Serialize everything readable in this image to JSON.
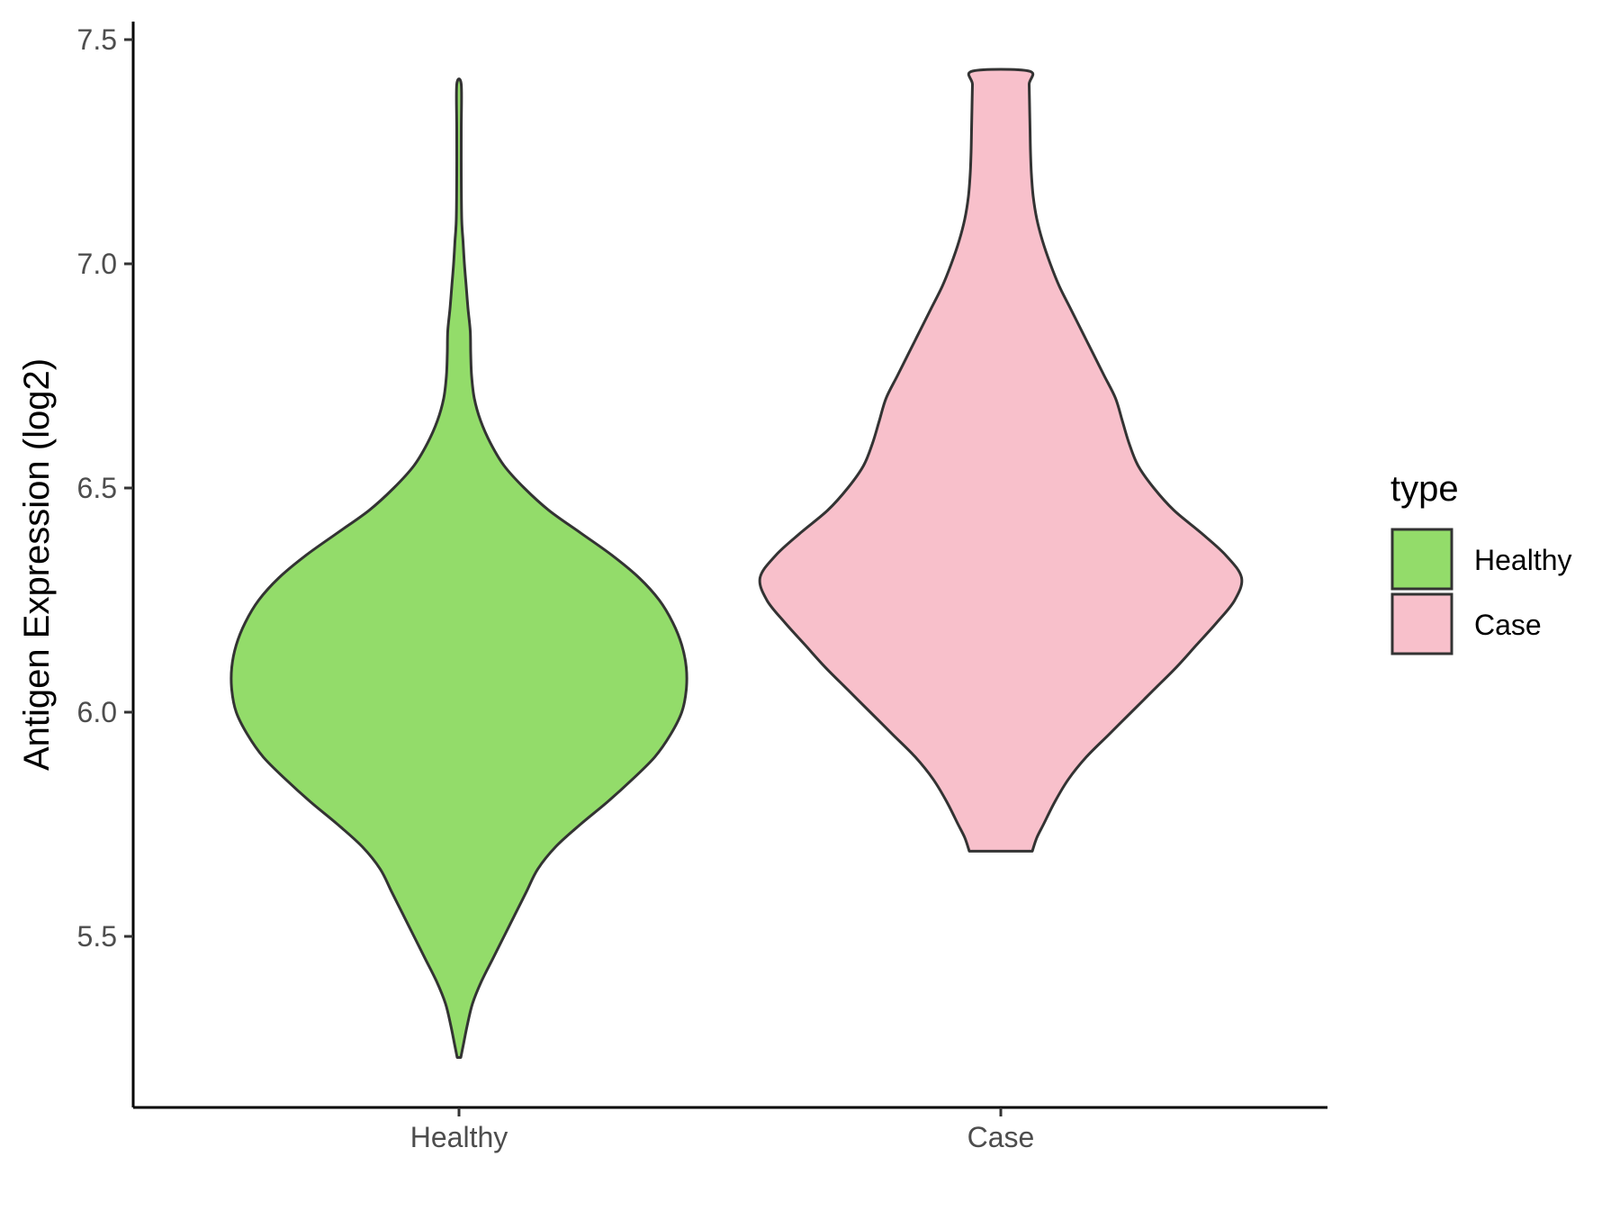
{
  "chart_data": {
    "type": "violin",
    "title": "",
    "xlabel": "",
    "ylabel": "Antigen Expression (log2)",
    "ylim": [
      5.1,
      7.55
    ],
    "yticks": [
      "5.5",
      "6.0",
      "6.5",
      "7.0",
      "7.5"
    ],
    "categories": [
      "Healthy",
      "Case"
    ],
    "legend": {
      "title": "type",
      "placement": "right",
      "entries": [
        {
          "label": "Healthy",
          "color": "#93dc6a"
        },
        {
          "label": "Case",
          "color": "#f8c0cb"
        }
      ]
    },
    "grid": false,
    "outline_color": "#333333",
    "series": [
      {
        "category": "Healthy",
        "color": "#93dc6a",
        "min": 5.23,
        "max": 7.4,
        "density_profile": [
          [
            5.23,
            0.004
          ],
          [
            5.26,
            0.01
          ],
          [
            5.3,
            0.018
          ],
          [
            5.35,
            0.03
          ],
          [
            5.4,
            0.05
          ],
          [
            5.45,
            0.075
          ],
          [
            5.5,
            0.1
          ],
          [
            5.55,
            0.125
          ],
          [
            5.6,
            0.15
          ],
          [
            5.65,
            0.175
          ],
          [
            5.7,
            0.215
          ],
          [
            5.75,
            0.27
          ],
          [
            5.8,
            0.33
          ],
          [
            5.85,
            0.385
          ],
          [
            5.9,
            0.435
          ],
          [
            5.95,
            0.47
          ],
          [
            6.0,
            0.495
          ],
          [
            6.05,
            0.505
          ],
          [
            6.1,
            0.505
          ],
          [
            6.15,
            0.495
          ],
          [
            6.2,
            0.475
          ],
          [
            6.25,
            0.445
          ],
          [
            6.3,
            0.4
          ],
          [
            6.35,
            0.34
          ],
          [
            6.4,
            0.27
          ],
          [
            6.45,
            0.2
          ],
          [
            6.5,
            0.145
          ],
          [
            6.55,
            0.1
          ],
          [
            6.6,
            0.07
          ],
          [
            6.65,
            0.048
          ],
          [
            6.7,
            0.034
          ],
          [
            6.75,
            0.028
          ],
          [
            6.8,
            0.026
          ],
          [
            6.85,
            0.025
          ],
          [
            6.9,
            0.02
          ],
          [
            6.95,
            0.016
          ],
          [
            7.0,
            0.012
          ],
          [
            7.05,
            0.009
          ],
          [
            7.1,
            0.006
          ],
          [
            7.2,
            0.005
          ],
          [
            7.3,
            0.005
          ],
          [
            7.4,
            0.005
          ]
        ]
      },
      {
        "category": "Case",
        "color": "#f8c0cb",
        "min": 5.69,
        "max": 7.43,
        "density_profile": [
          [
            5.69,
            0.07
          ],
          [
            5.72,
            0.08
          ],
          [
            5.75,
            0.095
          ],
          [
            5.8,
            0.12
          ],
          [
            5.85,
            0.15
          ],
          [
            5.9,
            0.19
          ],
          [
            5.95,
            0.24
          ],
          [
            6.0,
            0.29
          ],
          [
            6.05,
            0.34
          ],
          [
            6.1,
            0.39
          ],
          [
            6.15,
            0.435
          ],
          [
            6.2,
            0.48
          ],
          [
            6.25,
            0.52
          ],
          [
            6.3,
            0.535
          ],
          [
            6.35,
            0.5
          ],
          [
            6.4,
            0.445
          ],
          [
            6.45,
            0.385
          ],
          [
            6.5,
            0.34
          ],
          [
            6.55,
            0.305
          ],
          [
            6.6,
            0.285
          ],
          [
            6.65,
            0.27
          ],
          [
            6.7,
            0.255
          ],
          [
            6.75,
            0.23
          ],
          [
            6.8,
            0.205
          ],
          [
            6.85,
            0.18
          ],
          [
            6.9,
            0.155
          ],
          [
            6.95,
            0.13
          ],
          [
            7.0,
            0.11
          ],
          [
            7.05,
            0.093
          ],
          [
            7.1,
            0.08
          ],
          [
            7.15,
            0.072
          ],
          [
            7.2,
            0.068
          ],
          [
            7.25,
            0.066
          ],
          [
            7.3,
            0.065
          ],
          [
            7.35,
            0.064
          ],
          [
            7.4,
            0.063
          ],
          [
            7.43,
            0.062
          ]
        ]
      }
    ]
  }
}
